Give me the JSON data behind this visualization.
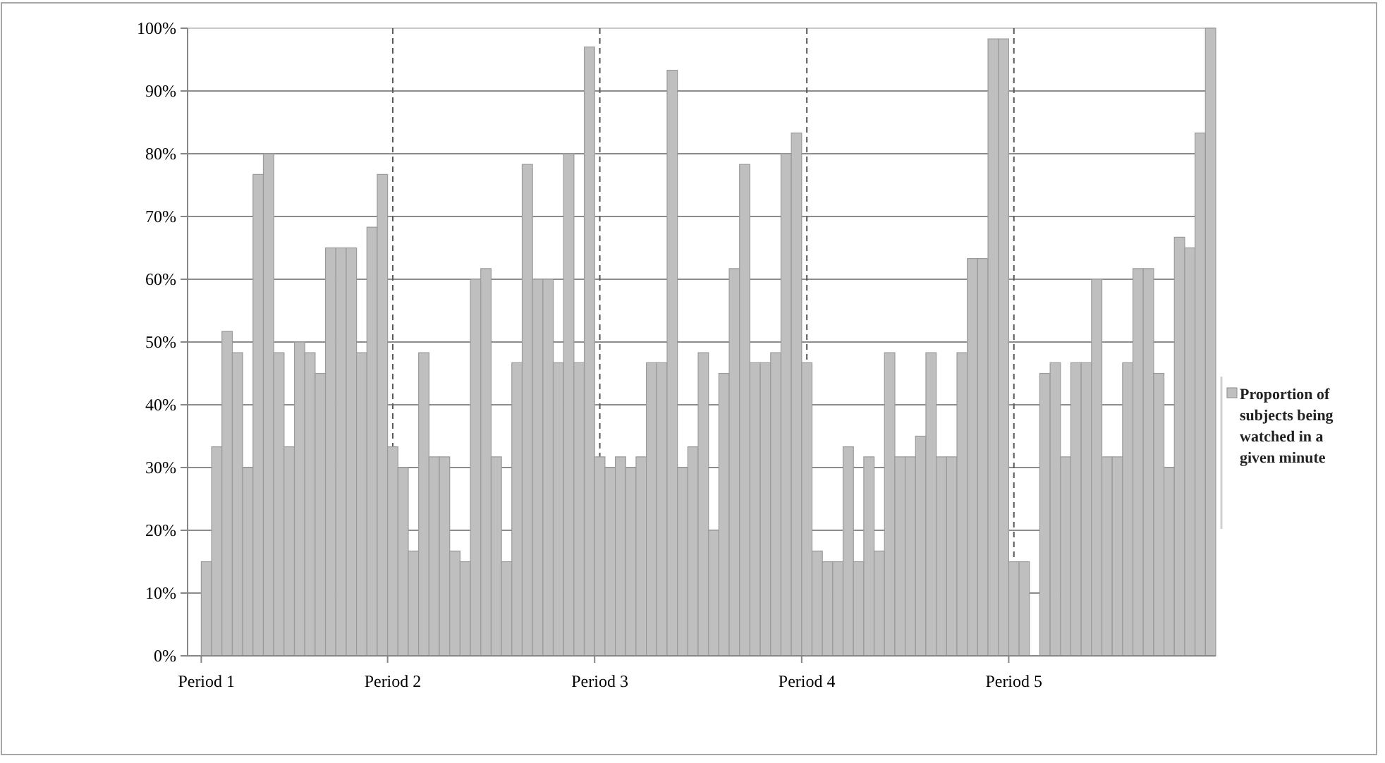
{
  "chart_data": {
    "type": "bar",
    "categories": [
      "Period 1",
      null,
      null,
      null,
      null,
      null,
      null,
      null,
      null,
      null,
      null,
      null,
      null,
      null,
      null,
      null,
      null,
      null,
      "Period 2",
      null,
      null,
      null,
      null,
      null,
      null,
      null,
      null,
      null,
      null,
      null,
      null,
      null,
      null,
      null,
      null,
      null,
      null,
      null,
      "Period 3",
      null,
      null,
      null,
      null,
      null,
      null,
      null,
      null,
      null,
      null,
      null,
      null,
      null,
      null,
      null,
      null,
      null,
      null,
      null,
      "Period 4",
      null,
      null,
      null,
      null,
      null,
      null,
      null,
      null,
      null,
      null,
      null,
      null,
      null,
      null,
      null,
      null,
      null,
      null,
      null,
      "Period 5",
      null,
      null,
      null,
      null,
      null,
      null,
      null,
      null,
      null,
      null,
      null,
      null,
      null,
      null,
      null,
      null,
      null,
      null,
      null
    ],
    "series": [
      {
        "name": "Proportion of subjects being watched in a given minute",
        "color": "#bfbfbf",
        "values": [
          15,
          33.3,
          51.7,
          48.3,
          30,
          76.7,
          80,
          48.3,
          33.3,
          50,
          48.3,
          45,
          65,
          65,
          65,
          48.3,
          68.3,
          76.7,
          33.3,
          30,
          16.7,
          48.3,
          31.7,
          31.7,
          16.7,
          15,
          60,
          61.7,
          31.7,
          15,
          46.7,
          78.3,
          60,
          60,
          46.7,
          80,
          46.7,
          97,
          31.7,
          30,
          31.7,
          30,
          31.7,
          46.7,
          46.7,
          93.3,
          30,
          33.3,
          48.3,
          20,
          45,
          61.7,
          78.3,
          46.7,
          46.7,
          48.3,
          80,
          83.3,
          46.7,
          16.7,
          15,
          15,
          33.3,
          15,
          31.7,
          16.7,
          48.3,
          31.7,
          31.7,
          35,
          48.3,
          31.7,
          31.7,
          48.3,
          63.3,
          63.3,
          98.3,
          98.3,
          15,
          15,
          0,
          45,
          46.7,
          31.7,
          46.7,
          46.7,
          60,
          31.7,
          31.7,
          46.7,
          61.7,
          61.7,
          45,
          30,
          66.7,
          65,
          83.3,
          100
        ]
      }
    ],
    "ylim": [
      0,
      100
    ],
    "yticks": [
      {
        "value": 0,
        "label": "0%"
      },
      {
        "value": 10,
        "label": "10%"
      },
      {
        "value": 20,
        "label": "20%"
      },
      {
        "value": 30,
        "label": "30%"
      },
      {
        "value": 40,
        "label": "40%"
      },
      {
        "value": 50,
        "label": "50%"
      },
      {
        "value": 60,
        "label": "60%"
      },
      {
        "value": 70,
        "label": "70%"
      },
      {
        "value": 80,
        "label": "80%"
      },
      {
        "value": 90,
        "label": "90%"
      },
      {
        "value": 100,
        "label": "100%"
      }
    ],
    "grid": "y",
    "legend": "right",
    "ref_lines": [
      {
        "axis": "x",
        "value": "Period 2",
        "color": "#595959",
        "line_style": "dashed"
      },
      {
        "axis": "x",
        "value": "Period 3",
        "color": "#595959",
        "line_style": "dashed"
      },
      {
        "axis": "x",
        "value": "Period 4",
        "color": "#595959",
        "line_style": "dashed"
      },
      {
        "axis": "x",
        "value": "Period 5",
        "color": "#595959",
        "line_style": "dashed"
      }
    ]
  }
}
